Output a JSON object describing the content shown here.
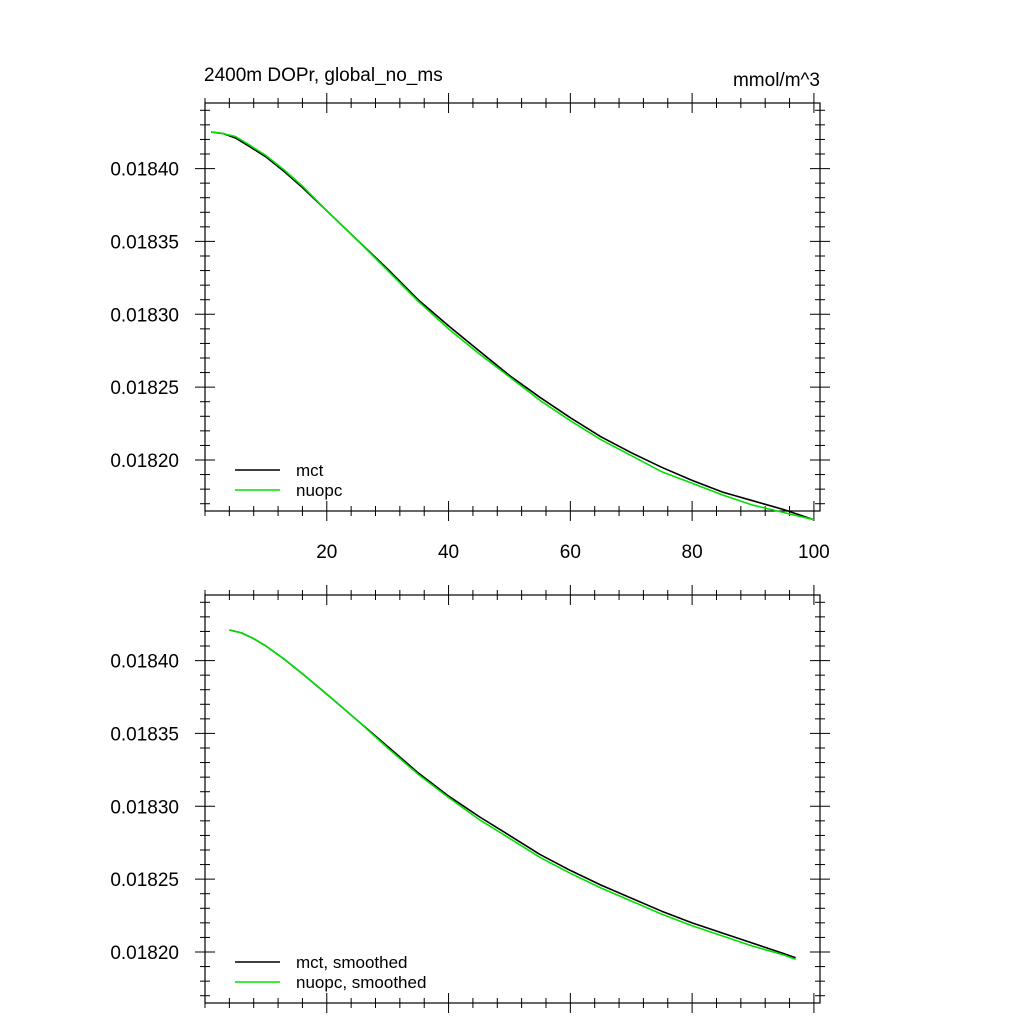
{
  "colors": {
    "mct": "#000000",
    "nuopc": "#00e000"
  },
  "chart_data": [
    {
      "type": "line",
      "title": "2400m DOPr, global_no_ms",
      "units": "mmol/m^3",
      "xlabel": "",
      "ylabel": "",
      "xlim": [
        0,
        101
      ],
      "ylim": [
        0.018165,
        0.018445
      ],
      "xticks": [
        20,
        40,
        60,
        80,
        100
      ],
      "xtick_labels": [
        "20",
        "40",
        "60",
        "80",
        "100"
      ],
      "yticks": [
        0.0184,
        0.01835,
        0.0183,
        0.01825,
        0.0182
      ],
      "ytick_labels": [
        "0.01840",
        "0.01835",
        "0.01830",
        "0.01825",
        "0.01820"
      ],
      "legend": "bottom-left",
      "series": [
        {
          "name": "mct",
          "color": "#000000",
          "x": [
            1,
            3,
            5,
            7,
            10,
            13,
            16,
            20,
            25,
            30,
            35,
            40,
            45,
            50,
            55,
            60,
            65,
            70,
            75,
            80,
            85,
            90,
            95,
            100
          ],
          "y": [
            0.018425,
            0.018424,
            0.018421,
            0.018416,
            0.018408,
            0.018398,
            0.018387,
            0.018371,
            0.018351,
            0.018331,
            0.01831,
            0.018292,
            0.018275,
            0.018258,
            0.018243,
            0.018229,
            0.018216,
            0.018205,
            0.018195,
            0.018186,
            0.018178,
            0.018172,
            0.018166,
            0.018159
          ]
        },
        {
          "name": "nuopc",
          "color": "#00e000",
          "x": [
            1,
            3,
            5,
            7,
            10,
            13,
            16,
            20,
            25,
            30,
            35,
            40,
            45,
            50,
            55,
            60,
            65,
            70,
            75,
            80,
            85,
            90,
            95,
            100
          ],
          "y": [
            0.018425,
            0.018424,
            0.018422,
            0.018417,
            0.018409,
            0.018399,
            0.018388,
            0.018371,
            0.018351,
            0.01833,
            0.018309,
            0.01829,
            0.018273,
            0.018257,
            0.018241,
            0.018227,
            0.018214,
            0.018203,
            0.018192,
            0.018184,
            0.018176,
            0.018169,
            0.018164,
            0.018159
          ]
        }
      ]
    },
    {
      "type": "line",
      "title": "",
      "xlabel": "",
      "ylabel": "",
      "xlim": [
        0,
        101
      ],
      "ylim": [
        0.018165,
        0.018445
      ],
      "xticks": [
        20,
        40,
        60,
        80,
        100
      ],
      "xtick_labels": [],
      "yticks": [
        0.0184,
        0.01835,
        0.0183,
        0.01825,
        0.0182
      ],
      "ytick_labels": [
        "0.01840",
        "0.01835",
        "0.01830",
        "0.01825",
        "0.01820"
      ],
      "legend": "bottom-left",
      "series": [
        {
          "name": "mct, smoothed",
          "color": "#000000",
          "x": [
            4,
            6,
            8,
            10,
            13,
            16,
            20,
            25,
            30,
            35,
            40,
            45,
            50,
            55,
            60,
            65,
            70,
            75,
            80,
            85,
            90,
            95,
            97
          ],
          "y": [
            0.018421,
            0.018419,
            0.018415,
            0.01841,
            0.018401,
            0.018391,
            0.018377,
            0.018359,
            0.018341,
            0.018323,
            0.018307,
            0.018293,
            0.01828,
            0.018267,
            0.018256,
            0.018246,
            0.018237,
            0.018228,
            0.01822,
            0.018213,
            0.018206,
            0.018199,
            0.018196
          ]
        },
        {
          "name": "nuopc, smoothed",
          "color": "#00e000",
          "x": [
            4,
            6,
            8,
            10,
            13,
            16,
            20,
            25,
            30,
            35,
            40,
            45,
            50,
            55,
            60,
            65,
            70,
            75,
            80,
            85,
            90,
            95,
            97
          ],
          "y": [
            0.018421,
            0.018419,
            0.018415,
            0.01841,
            0.018401,
            0.018391,
            0.018377,
            0.018359,
            0.01834,
            0.018322,
            0.018306,
            0.018291,
            0.018278,
            0.018265,
            0.018254,
            0.018244,
            0.018235,
            0.018226,
            0.018218,
            0.018211,
            0.018204,
            0.018198,
            0.018195
          ]
        }
      ]
    }
  ]
}
